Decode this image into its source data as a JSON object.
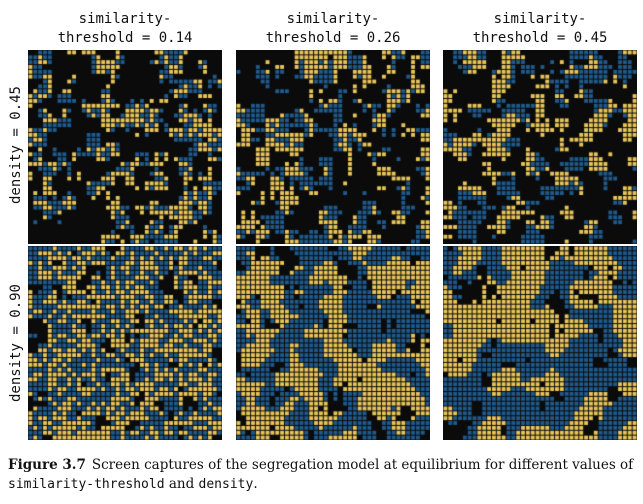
{
  "columns": [
    {
      "label": "similarity-\nthreshold = 0.14",
      "similarity_threshold": 0.14
    },
    {
      "label": "similarity-\nthreshold = 0.26",
      "similarity_threshold": 0.26
    },
    {
      "label": "similarity-\nthreshold = 0.45",
      "similarity_threshold": 0.45
    }
  ],
  "rows": [
    {
      "label": "density = 0.45",
      "density": 0.45
    },
    {
      "label": "density = 0.90",
      "density": 0.9
    }
  ],
  "colors": {
    "empty": "#0b0b0b",
    "group_a": "#e8c55b",
    "group_b": "#1f5a8c"
  },
  "caption": {
    "figure_label": "Figure 3.7",
    "text_1": "Screen captures of the segregation model at equilibrium for different values of",
    "code_1": "similarity-threshold",
    "text_2": "and",
    "code_2": "density",
    "text_3": "."
  }
}
